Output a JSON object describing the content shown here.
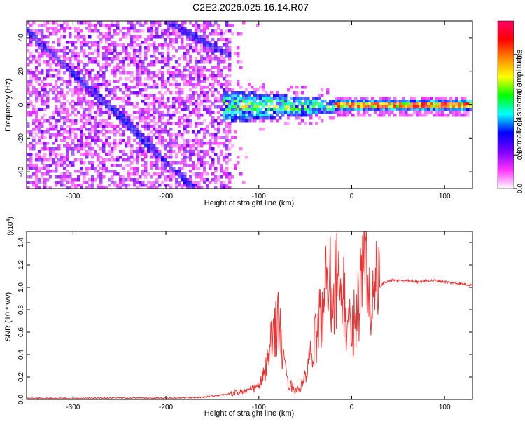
{
  "title": "C2E2.2026.025.16.14.R07",
  "chart_data": [
    {
      "type": "heatmap",
      "id": "spectrogram",
      "xlabel": "Height of straight line (km)",
      "ylabel": "Frequency (Hz)",
      "xlim": [
        -350,
        130
      ],
      "ylim": [
        -50,
        50
      ],
      "xticks": [
        -300,
        -200,
        -100,
        0,
        100
      ],
      "yticks": [
        -40,
        -20,
        0,
        20,
        40
      ],
      "xtick_labels": [
        "-300",
        "-200",
        "-100",
        "0",
        "100"
      ],
      "ytick_labels": [
        "-40",
        "-20",
        "0",
        "20",
        "40"
      ],
      "colorbar": {
        "label": "Normalized spectral amplitude",
        "range": [
          0,
          1
        ],
        "ticks": [
          0,
          0.2,
          0.4,
          0.6,
          0.8
        ],
        "tick_labels": [
          "0.0",
          "0.2",
          "0.4",
          "0.6",
          "0.8"
        ],
        "colors": [
          "#ffffff",
          "#ff33ff",
          "#7700ff",
          "#0000ff",
          "#00ffff",
          "#00ff00",
          "#ffff00",
          "#ff8800",
          "#ff0000",
          "#ff0066"
        ]
      },
      "features": {
        "noise_region_km": [
          -350,
          -130
        ],
        "sparse_region_km": [
          -130,
          -100
        ],
        "signal_cluster_km": [
          -140,
          -20
        ],
        "steady_line_km": [
          -20,
          130
        ],
        "steady_line_frequency_hz": 0,
        "diagonal_streaks": [
          {
            "from_km": -350,
            "from_hz": 45,
            "to_km": -170,
            "to_hz": -50
          },
          {
            "from_km": -280,
            "from_hz": 10,
            "to_km": -210,
            "to_hz": -27
          },
          {
            "from_km": -200,
            "from_hz": 50,
            "to_km": -130,
            "to_hz": 30
          }
        ]
      }
    },
    {
      "type": "line",
      "id": "snr",
      "xlabel": "Height of straight line (km)",
      "ylabel": "SNR (10 * v/v)",
      "y_scale_label": "(x10",
      "y_scale_exponent": "4",
      "xlim": [
        -350,
        130
      ],
      "ylim": [
        0,
        1.5
      ],
      "xticks": [
        -300,
        -200,
        -100,
        0,
        100
      ],
      "yticks": [
        0,
        0.2,
        0.4,
        0.6,
        0.8,
        1.0,
        1.2,
        1.4
      ],
      "xtick_labels": [
        "-300",
        "-200",
        "-100",
        "0",
        "100"
      ],
      "ytick_labels": [
        "0.0",
        "0.2",
        "0.4",
        "0.6",
        "0.8",
        "1.0",
        "1.2",
        "1.4"
      ],
      "series_color": "#ee3333",
      "series": [
        {
          "name": "SNR",
          "x": [
            -350,
            -300,
            -250,
            -200,
            -160,
            -140,
            -125,
            -110,
            -100,
            -95,
            -90,
            -85,
            -82,
            -79,
            -76,
            -73,
            -70,
            -65,
            -60,
            -55,
            -50,
            -45,
            -40,
            -35,
            -30,
            -27,
            -24,
            -21,
            -18,
            -15,
            -12,
            -9,
            -6,
            -3,
            0,
            3,
            6,
            9,
            12,
            15,
            18,
            21,
            25,
            30,
            35,
            40,
            50,
            60,
            70,
            80,
            90,
            100,
            110,
            120,
            130
          ],
          "y": [
            0.01,
            0.01,
            0.015,
            0.01,
            0.02,
            0.04,
            0.06,
            0.08,
            0.12,
            0.2,
            0.35,
            0.55,
            0.65,
            0.75,
            0.5,
            0.3,
            0.18,
            0.12,
            0.08,
            0.1,
            0.2,
            0.35,
            0.5,
            0.7,
            0.85,
            1.1,
            1.25,
            0.9,
            1.0,
            1.2,
            0.8,
            0.95,
            0.7,
            0.65,
            0.6,
            0.75,
            0.8,
            0.95,
            1.1,
            1.25,
            0.95,
            0.9,
            0.98,
            1.0,
            1.04,
            1.06,
            1.06,
            1.06,
            1.05,
            1.06,
            1.06,
            1.05,
            1.04,
            1.03,
            1.02
          ]
        }
      ]
    }
  ]
}
